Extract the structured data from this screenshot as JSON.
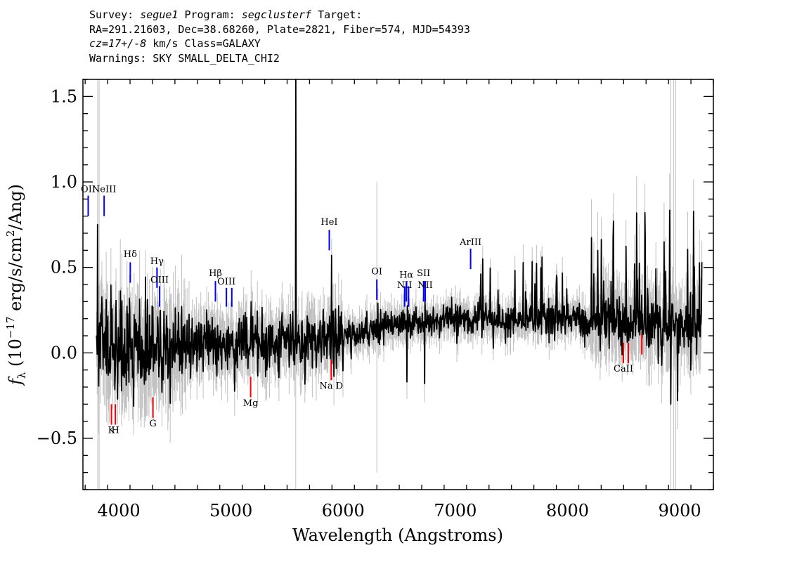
{
  "header": {
    "line1": {
      "prefix": "Survey: ",
      "survey": "segue1",
      "mid": " Program: ",
      "program": "segclusterf",
      "suffix": " Target:"
    },
    "line2": "RA=291.21603, Dec=38.68260, Plate=2821, Fiber=574, MJD=54393",
    "line3": {
      "cz": "cz=17+/-8",
      "suffix": " km/s Class=GALAXY"
    },
    "line4": "Warnings: SKY SMALL_DELTA_CHI2"
  },
  "chart_data": {
    "type": "line",
    "xlabel": "Wavelength (Angstroms)",
    "ylabel": "f_λ (10^-17 erg/s/cm^2/Ang)",
    "xlim": [
      3680,
      9300
    ],
    "ylim": [
      -0.8,
      1.6
    ],
    "xticks": [
      4000,
      5000,
      6000,
      7000,
      8000,
      9000
    ],
    "xtick_labels": [
      "4000",
      "5000",
      "6000",
      "7000",
      "8000",
      "9000"
    ],
    "yticks": [
      -0.5,
      0.0,
      0.5,
      1.0,
      1.5
    ],
    "ytick_labels": [
      "−0.5",
      "0.0",
      "0.5",
      "1.0",
      "1.5"
    ],
    "colors": {
      "flux": "#000000",
      "error": "#c0c0c0",
      "emission": "#0000ff",
      "absorption": "#ff0000"
    },
    "continuum": [
      [
        3800,
        0.05
      ],
      [
        4200,
        0.02
      ],
      [
        4800,
        0.04
      ],
      [
        5200,
        0.05
      ],
      [
        5600,
        0.06
      ],
      [
        6000,
        0.1
      ],
      [
        6500,
        0.17
      ],
      [
        7000,
        0.2
      ],
      [
        7500,
        0.19
      ],
      [
        8000,
        0.2
      ],
      [
        8500,
        0.18
      ],
      [
        9000,
        0.17
      ],
      [
        9200,
        0.17
      ]
    ],
    "features": [
      {
        "x": 3810,
        "y": 0.75,
        "color": "black"
      },
      {
        "x": 5577,
        "y": 1.6,
        "color": "black"
      },
      {
        "x": 5895,
        "y": 0.57,
        "color": "black"
      },
      {
        "x": 7245,
        "y": 0.55,
        "color": "black"
      },
      {
        "x": 8920,
        "y": 0.82,
        "color": "black"
      },
      {
        "x": 8860,
        "y": 0.65,
        "color": "black"
      },
      {
        "x": 6570,
        "y": -0.17,
        "color": "black"
      },
      {
        "x": 6725,
        "y": -0.18,
        "color": "black"
      },
      {
        "x": 8920,
        "y": -0.3,
        "color": "black"
      },
      {
        "x": 8980,
        "y": -0.28,
        "color": "black"
      }
    ],
    "emission_lines": [
      {
        "label": "OII",
        "x": 3727,
        "y0": 0.8,
        "y1": 0.92,
        "label_y": 0.94
      },
      {
        "label": "NeIII",
        "x": 3869,
        "y0": 0.8,
        "y1": 0.92,
        "label_y": 0.94
      },
      {
        "label": "Hδ",
        "x": 4102,
        "y0": 0.41,
        "y1": 0.53,
        "label_y": 0.56
      },
      {
        "label": "Hγ",
        "x": 4340,
        "y0": 0.38,
        "y1": 0.5,
        "label_y": 0.52
      },
      {
        "label": "OIII",
        "x": 4363,
        "y0": 0.27,
        "y1": 0.39,
        "label_y": 0.41
      },
      {
        "label": "Hβ",
        "x": 4861,
        "y0": 0.3,
        "y1": 0.42,
        "label_y": 0.45
      },
      {
        "label": "OIII",
        "x": 4959,
        "y0": 0.27,
        "y1": 0.38,
        "label_y": 0.4
      },
      {
        "label": "",
        "x": 5007,
        "y0": 0.27,
        "y1": 0.38,
        "label_y": 0.4
      },
      {
        "label": "HeI",
        "x": 5876,
        "y0": 0.6,
        "y1": 0.72,
        "label_y": 0.75
      },
      {
        "label": "OI",
        "x": 6300,
        "y0": 0.31,
        "y1": 0.43,
        "label_y": 0.46
      },
      {
        "label": "NII",
        "x": 6548,
        "y0": 0.27,
        "y1": 0.39,
        "label_y": 0.38
      },
      {
        "label": "Hα",
        "x": 6563,
        "y0": 0.3,
        "y1": 0.42,
        "label_y": 0.44
      },
      {
        "label": "",
        "x": 6583,
        "y0": 0.27,
        "y1": 0.39,
        "label_y": 0.41
      },
      {
        "label": "SII",
        "x": 6717,
        "y0": 0.3,
        "y1": 0.42,
        "label_y": 0.45
      },
      {
        "label": "NII",
        "x": 6731,
        "y0": 0.3,
        "y1": 0.42,
        "label_y": 0.38
      },
      {
        "label": "ArIII",
        "x": 7136,
        "y0": 0.49,
        "y1": 0.61,
        "label_y": 0.63
      }
    ],
    "absorption_lines": [
      {
        "label": "K",
        "x": 3934,
        "y0": -0.42,
        "y1": -0.3,
        "label_y": -0.47
      },
      {
        "label": "H",
        "x": 3969,
        "y0": -0.42,
        "y1": -0.3,
        "label_y": -0.47
      },
      {
        "label": "G",
        "x": 4304,
        "y0": -0.38,
        "y1": -0.26,
        "label_y": -0.43
      },
      {
        "label": "Mg",
        "x": 5175,
        "y0": -0.26,
        "y1": -0.14,
        "label_y": -0.31
      },
      {
        "label": "Na D",
        "x": 5894,
        "y0": -0.16,
        "y1": -0.04,
        "label_y": -0.21
      },
      {
        "label": "CaII",
        "x": 8498,
        "y0": -0.06,
        "y1": 0.06,
        "label_y": -0.11
      },
      {
        "label": "",
        "x": 8542,
        "y0": -0.06,
        "y1": 0.06,
        "label_y": -0.11
      },
      {
        "label": "",
        "x": 8662,
        "y0": -0.01,
        "y1": 0.11,
        "label_y": -0.06
      }
    ]
  }
}
